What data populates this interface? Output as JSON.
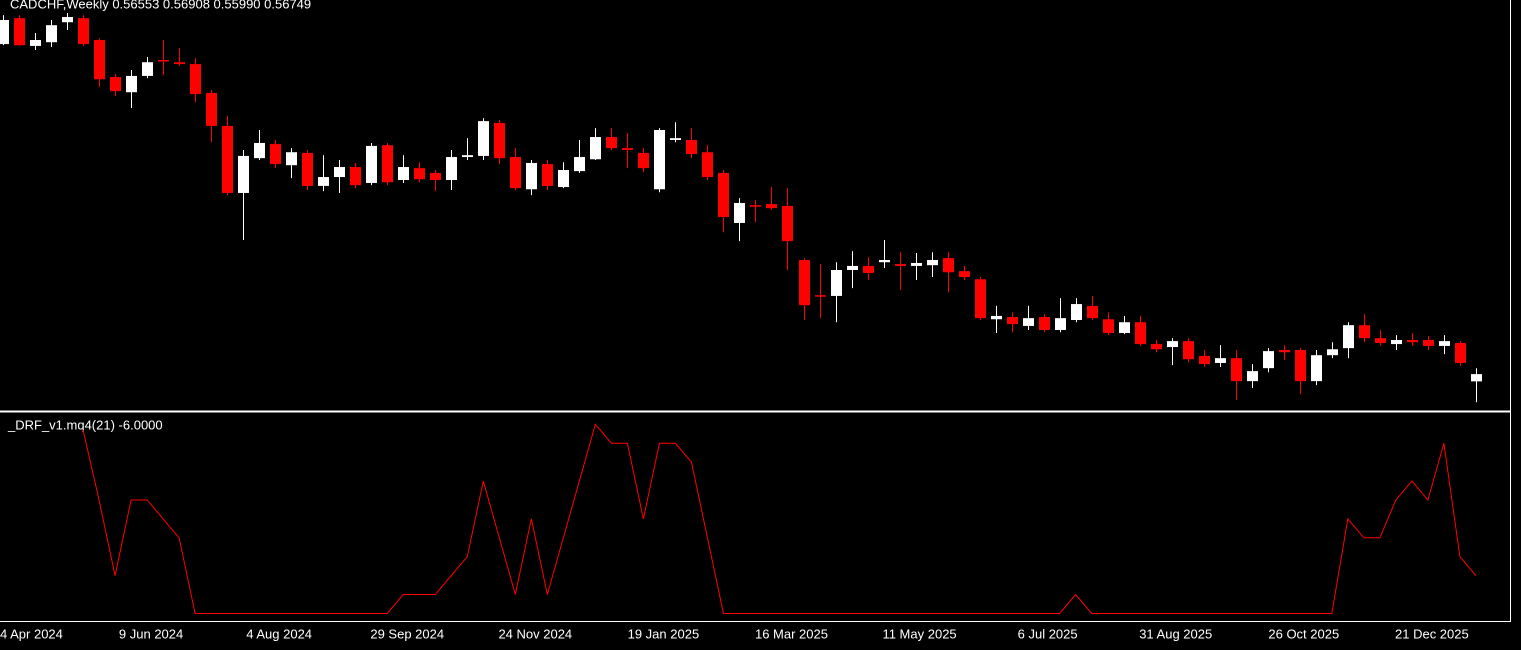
{
  "chart_data": [
    {
      "type": "candlestick",
      "title": "CADCHF,Weekly  0.56553 0.56908 0.55990 0.56749",
      "up_color": "#ffffff",
      "down_color": "#ff0000",
      "ylim": [
        0.5578,
        0.6685
      ],
      "categories": [
        "4 Apr 2024",
        null,
        null,
        null,
        null,
        null,
        null,
        null,
        "9 Jun 2024",
        null,
        null,
        null,
        null,
        null,
        null,
        null,
        "4 Aug 2024",
        null,
        null,
        null,
        null,
        null,
        null,
        null,
        "29 Sep 2024",
        null,
        null,
        null,
        null,
        null,
        null,
        null,
        "24 Nov 2024",
        null,
        null,
        null,
        null,
        null,
        null,
        null,
        "19 Jan 2025",
        null,
        null,
        null,
        null,
        null,
        null,
        null,
        "16 Mar 2025",
        null,
        null,
        null,
        null,
        null,
        null,
        null,
        "11 May 2025",
        null,
        null,
        null,
        null,
        null,
        null,
        null,
        "6 Jul 2025",
        null,
        null,
        null,
        null,
        null,
        null,
        null,
        "31 Aug 2025",
        null,
        null,
        null,
        null,
        null,
        null,
        null,
        "26 Oct 2025",
        null,
        null,
        null,
        null,
        null,
        null,
        null,
        "21 Dec 2025",
        null,
        null,
        null,
        null
      ],
      "open": [
        0.6566,
        0.6636,
        0.6561,
        0.6571,
        0.6625,
        0.6636,
        0.6577,
        0.6477,
        0.6436,
        0.648,
        0.6523,
        0.6517,
        0.6512,
        0.6434,
        0.6345,
        0.6164,
        0.6258,
        0.6296,
        0.6239,
        0.6272,
        0.6183,
        0.6207,
        0.6234,
        0.6191,
        0.6293,
        0.6199,
        0.6231,
        0.6218,
        0.6199,
        0.6261,
        0.6264,
        0.6353,
        0.6261,
        0.6174,
        0.6242,
        0.618,
        0.6223,
        0.6255,
        0.6315,
        0.6285,
        0.6272,
        0.6174,
        0.6307,
        0.6307,
        0.6274,
        0.6218,
        0.6083,
        0.6131,
        0.6134,
        0.6129,
        0.5983,
        0.5888,
        0.5886,
        0.5956,
        0.5967,
        0.5977,
        0.5972,
        0.5967,
        0.5969,
        0.5988,
        0.5953,
        0.5931,
        0.5823,
        0.5829,
        0.5805,
        0.5829,
        0.5794,
        0.5821,
        0.5859,
        0.5823,
        0.5786,
        0.5815,
        0.5756,
        0.5748,
        0.5764,
        0.5724,
        0.5705,
        0.5718,
        0.5656,
        0.5691,
        0.574,
        0.574,
        0.5656,
        0.5726,
        0.5745,
        0.5807,
        0.5772,
        0.5756,
        0.5767,
        0.5767,
        0.5751,
        0.5759,
        0.56553
      ],
      "high": [
        0.6644,
        0.6644,
        0.6596,
        0.6631,
        0.665,
        0.6644,
        0.6582,
        0.6485,
        0.6496,
        0.6531,
        0.6577,
        0.6555,
        0.6528,
        0.6442,
        0.6372,
        0.628,
        0.6334,
        0.6307,
        0.6285,
        0.628,
        0.6266,
        0.6253,
        0.6245,
        0.6299,
        0.6299,
        0.6266,
        0.6247,
        0.6226,
        0.628,
        0.6312,
        0.6366,
        0.6361,
        0.6285,
        0.6253,
        0.6253,
        0.6247,
        0.6307,
        0.6339,
        0.6339,
        0.6326,
        0.6285,
        0.6339,
        0.6355,
        0.6339,
        0.6293,
        0.6226,
        0.615,
        0.6145,
        0.618,
        0.6177,
        0.5988,
        0.5972,
        0.5977,
        0.6007,
        0.5991,
        0.6037,
        0.6004,
        0.6002,
        0.6004,
        0.6004,
        0.5967,
        0.5937,
        0.5859,
        0.5842,
        0.5859,
        0.5837,
        0.588,
        0.588,
        0.5886,
        0.5842,
        0.5832,
        0.5832,
        0.5767,
        0.5772,
        0.5772,
        0.574,
        0.5753,
        0.574,
        0.5702,
        0.5745,
        0.5753,
        0.5745,
        0.574,
        0.5761,
        0.5815,
        0.5837,
        0.5794,
        0.578,
        0.5786,
        0.5778,
        0.578,
        0.5764,
        0.56908
      ],
      "low": [
        0.6563,
        0.6561,
        0.655,
        0.6558,
        0.6604,
        0.6561,
        0.645,
        0.6426,
        0.6393,
        0.6474,
        0.6482,
        0.6507,
        0.6409,
        0.6301,
        0.6158,
        0.6037,
        0.6253,
        0.6231,
        0.6204,
        0.6172,
        0.6169,
        0.6164,
        0.6177,
        0.6185,
        0.6185,
        0.6191,
        0.6193,
        0.6169,
        0.6172,
        0.6253,
        0.6253,
        0.6242,
        0.6172,
        0.6158,
        0.6172,
        0.6177,
        0.6218,
        0.6253,
        0.628,
        0.6231,
        0.622,
        0.6166,
        0.6301,
        0.6258,
        0.6199,
        0.6058,
        0.6034,
        0.6085,
        0.6118,
        0.5956,
        0.5821,
        0.5826,
        0.5815,
        0.5907,
        0.5929,
        0.5961,
        0.5902,
        0.5929,
        0.5937,
        0.5896,
        0.5929,
        0.5821,
        0.5786,
        0.5788,
        0.5794,
        0.5788,
        0.5788,
        0.5815,
        0.5821,
        0.578,
        0.5783,
        0.5751,
        0.5734,
        0.5699,
        0.5707,
        0.5694,
        0.5694,
        0.5605,
        0.5637,
        0.568,
        0.5713,
        0.5621,
        0.5645,
        0.5718,
        0.5718,
        0.5761,
        0.5751,
        0.574,
        0.5751,
        0.574,
        0.5729,
        0.5697,
        0.5599
      ],
      "close": [
        0.6631,
        0.6563,
        0.6577,
        0.6617,
        0.6639,
        0.6566,
        0.6471,
        0.6439,
        0.648,
        0.6517,
        0.652,
        0.6512,
        0.6431,
        0.6345,
        0.6164,
        0.6264,
        0.6299,
        0.6242,
        0.6274,
        0.6183,
        0.6207,
        0.6234,
        0.6185,
        0.6291,
        0.6193,
        0.6234,
        0.6201,
        0.6199,
        0.6261,
        0.6266,
        0.6358,
        0.6258,
        0.6177,
        0.6245,
        0.6183,
        0.6226,
        0.6261,
        0.6315,
        0.6285,
        0.628,
        0.6231,
        0.6334,
        0.6312,
        0.6269,
        0.6207,
        0.6099,
        0.6137,
        0.6129,
        0.6123,
        0.6034,
        0.5861,
        0.5886,
        0.5956,
        0.5967,
        0.5948,
        0.5983,
        0.5967,
        0.5975,
        0.5983,
        0.595,
        0.5937,
        0.5826,
        0.5832,
        0.581,
        0.5826,
        0.5794,
        0.5826,
        0.5864,
        0.5826,
        0.5786,
        0.5815,
        0.5756,
        0.5742,
        0.5764,
        0.5715,
        0.5702,
        0.5718,
        0.5656,
        0.5683,
        0.5737,
        0.5734,
        0.5656,
        0.5726,
        0.5742,
        0.5807,
        0.5772,
        0.5759,
        0.5767,
        0.5761,
        0.5751,
        0.5764,
        0.5705,
        0.56749
      ]
    },
    {
      "type": "line",
      "ylim": [
        -0.04,
        1.06
      ],
      "series": [
        {
          "name": "_DRF_v1.mq4(21) -6.0000",
          "color": "#ff0000",
          "values": [
            null,
            null,
            null,
            null,
            null,
            0.97,
            0.6,
            0.2,
            0.6,
            0.6,
            0.5,
            0.4,
            0,
            0,
            0,
            0,
            0,
            0,
            0,
            0,
            0,
            0,
            0,
            0,
            0,
            0.1,
            0.1,
            0.1,
            0.2,
            0.3,
            0.7,
            0.4,
            0.1,
            0.5,
            0.1,
            0.4,
            0.7,
            1,
            0.9,
            0.9,
            0.5,
            0.9,
            0.9,
            0.8,
            0.4,
            0,
            0,
            0,
            0,
            0,
            0,
            0,
            0,
            0,
            0,
            0,
            0,
            0,
            0,
            0,
            0,
            0,
            0,
            0,
            0,
            0,
            0,
            0.1,
            0,
            0,
            0,
            0,
            0,
            0,
            0,
            0,
            0,
            0,
            0,
            0,
            0,
            0,
            0,
            0,
            0.5,
            0.4,
            0.4,
            0.6,
            0.7,
            0.6,
            0.9,
            0.3,
            0.2
          ]
        }
      ]
    }
  ]
}
